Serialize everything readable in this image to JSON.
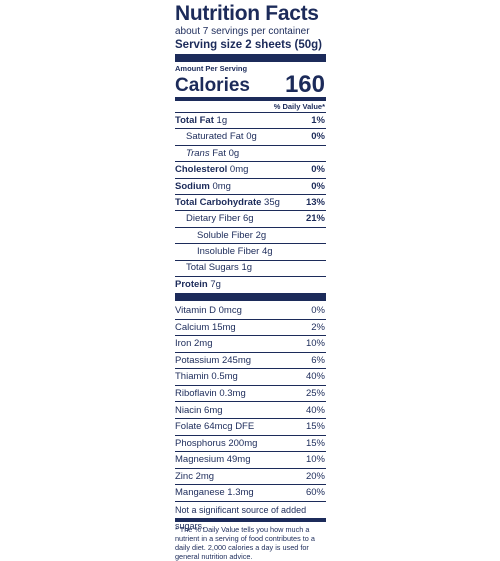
{
  "label": {
    "title": "Nutrition Facts",
    "servings_per_container": "about 7 servings per container",
    "serving_size": "Serving size 2 sheets (50g)",
    "amount_per_serving": "Amount Per Serving",
    "calories_label": "Calories",
    "calories_value": "160",
    "daily_value_header": "% Daily Value*",
    "nutrients": [
      {
        "name": "Total Fat",
        "amount": "1g",
        "dv": "1%"
      },
      {
        "name": "Saturated Fat",
        "amount": "0g",
        "dv": "0%"
      },
      {
        "name": "Trans",
        "amount": "Fat 0g",
        "dv": ""
      },
      {
        "name": "Cholesterol",
        "amount": "0mg",
        "dv": "0%"
      },
      {
        "name": "Sodium",
        "amount": "0mg",
        "dv": "0%"
      },
      {
        "name": "Total Carbohydrate",
        "amount": "35g",
        "dv": "13%"
      },
      {
        "name": "Dietary Fiber",
        "amount": "6g",
        "dv": "21%"
      },
      {
        "name": "Soluble Fiber",
        "amount": "2g",
        "dv": ""
      },
      {
        "name": "Insoluble Fiber",
        "amount": "4g",
        "dv": ""
      },
      {
        "name": "Total Sugars",
        "amount": "1g",
        "dv": ""
      },
      {
        "name": "Protein",
        "amount": "7g",
        "dv": ""
      }
    ],
    "vitamins": [
      {
        "name": "Vitamin D 0mcg",
        "dv": "0%"
      },
      {
        "name": "Calcium 15mg",
        "dv": "2%"
      },
      {
        "name": "Iron 2mg",
        "dv": "10%"
      },
      {
        "name": "Potassium 245mg",
        "dv": "6%"
      },
      {
        "name": "Thiamin 0.5mg",
        "dv": "40%"
      },
      {
        "name": "Riboflavin 0.3mg",
        "dv": "25%"
      },
      {
        "name": "Niacin 6mg",
        "dv": "40%"
      },
      {
        "name": "Folate 64mcg DFE",
        "dv": "15%"
      },
      {
        "name": "Phosphorus 200mg",
        "dv": "15%"
      },
      {
        "name": "Magnesium 49mg",
        "dv": "10%"
      },
      {
        "name": "Zinc 2mg",
        "dv": "20%"
      },
      {
        "name": "Manganese 1.3mg",
        "dv": "60%"
      }
    ],
    "added_sugars_note": "Not a significant source of added sugars.",
    "footnote": "* The % Daily Value tells you how much a nutrient in a serving of food contributes to a daily diet. 2,000 calories a day is used for general nutrition advice.",
    "ink_color": "#1c2b5a"
  }
}
